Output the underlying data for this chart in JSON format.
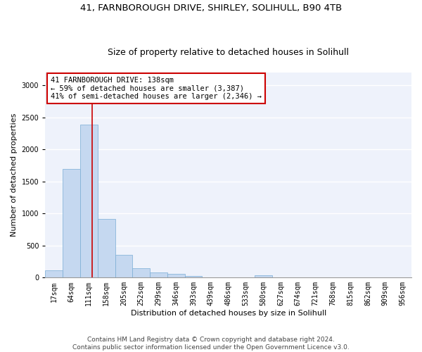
{
  "title_line1": "41, FARNBOROUGH DRIVE, SHIRLEY, SOLIHULL, B90 4TB",
  "title_line2": "Size of property relative to detached houses in Solihull",
  "xlabel": "Distribution of detached houses by size in Solihull",
  "ylabel": "Number of detached properties",
  "bar_color": "#c5d8f0",
  "bar_edge_color": "#7aadd4",
  "categories": [
    "17sqm",
    "64sqm",
    "111sqm",
    "158sqm",
    "205sqm",
    "252sqm",
    "299sqm",
    "346sqm",
    "393sqm",
    "439sqm",
    "486sqm",
    "533sqm",
    "580sqm",
    "627sqm",
    "674sqm",
    "721sqm",
    "768sqm",
    "815sqm",
    "862sqm",
    "909sqm",
    "956sqm"
  ],
  "values": [
    110,
    1700,
    2390,
    920,
    360,
    150,
    80,
    55,
    30,
    5,
    3,
    2,
    35,
    2,
    2,
    2,
    2,
    2,
    2,
    2,
    2
  ],
  "ylim": [
    0,
    3200
  ],
  "yticks": [
    0,
    500,
    1000,
    1500,
    2000,
    2500,
    3000
  ],
  "property_line_x": 2.18,
  "annotation_text": "41 FARNBOROUGH DRIVE: 138sqm\n← 59% of detached houses are smaller (3,387)\n41% of semi-detached houses are larger (2,346) →",
  "annotation_box_color": "#cc0000",
  "footer_line1": "Contains HM Land Registry data © Crown copyright and database right 2024.",
  "footer_line2": "Contains public sector information licensed under the Open Government Licence v3.0.",
  "background_color": "#eef2fb",
  "grid_color": "#ffffff",
  "title_fontsize": 9.5,
  "subtitle_fontsize": 9,
  "axis_label_fontsize": 8,
  "tick_fontsize": 7,
  "annotation_fontsize": 7.5,
  "footer_fontsize": 6.5
}
